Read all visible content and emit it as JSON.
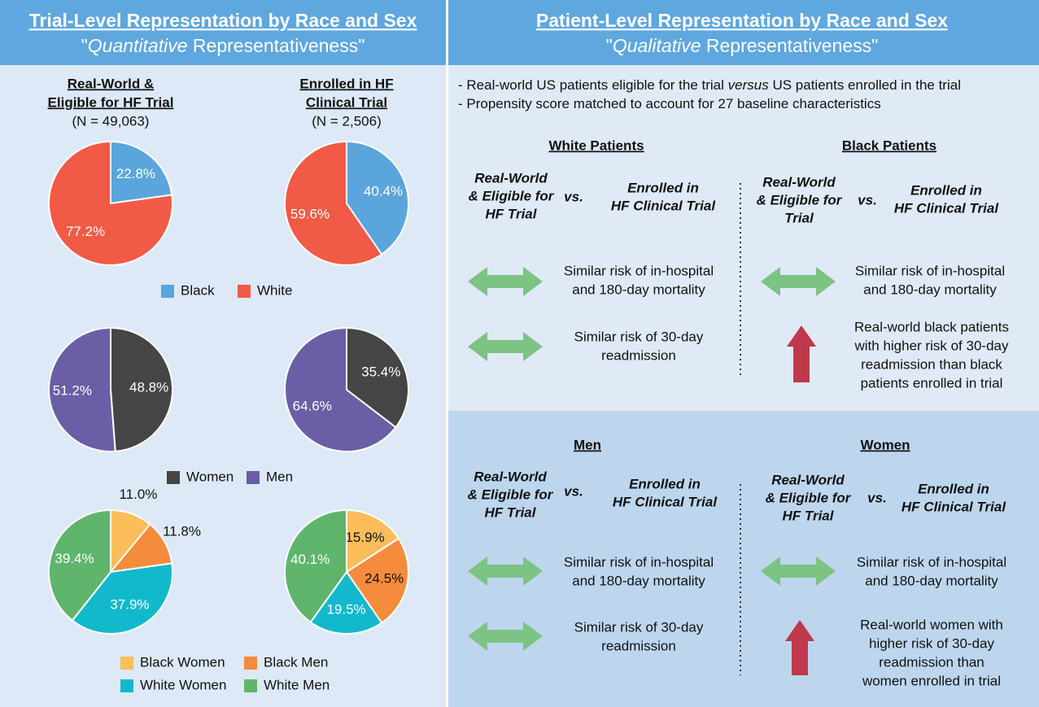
{
  "left_header": {
    "title": "Trial-Level Representation by Race and Sex",
    "subtitle": [
      "\"",
      "Quantitative",
      " Representativeness\""
    ]
  },
  "right_header": {
    "title": "Patient-Level Representation by Race and Sex",
    "subtitle": [
      "\"",
      "Qualitative",
      " Representativeness\""
    ]
  },
  "columns": [
    {
      "heading": [
        "Real-World &",
        "Eligible for HF Trial"
      ],
      "n": "(N = 49,063)"
    },
    {
      "heading": [
        "Enrolled in HF",
        "Clinical Trial"
      ],
      "n": "(N = 2,506)"
    }
  ],
  "chart_data": [
    {
      "type": "pie",
      "categories": [
        "Black",
        "White"
      ],
      "values": [
        22.8,
        77.2
      ],
      "value_labels": [
        "22.8%",
        "77.2%"
      ],
      "colors": [
        "#5aa5dc",
        "#f05a46"
      ]
    },
    {
      "type": "pie",
      "categories": [
        "Black",
        "White"
      ],
      "values": [
        40.4,
        59.6
      ],
      "value_labels": [
        "40.4%",
        "59.6%"
      ],
      "colors": [
        "#5aa5dc",
        "#f05a46"
      ]
    },
    {
      "type": "pie",
      "categories": [
        "Women",
        "Men"
      ],
      "values": [
        48.8,
        51.2
      ],
      "value_labels": [
        "48.8%",
        "51.2%"
      ],
      "colors": [
        "#454545",
        "#6a5ea6"
      ]
    },
    {
      "type": "pie",
      "categories": [
        "Women",
        "Men"
      ],
      "values": [
        35.4,
        64.6
      ],
      "value_labels": [
        "35.4%",
        "64.6%"
      ],
      "colors": [
        "#454545",
        "#6a5ea6"
      ]
    },
    {
      "type": "pie",
      "categories": [
        "Black Women",
        "Black Men",
        "White Women",
        "White Men"
      ],
      "values": [
        11,
        11.8,
        37.9,
        39.4
      ],
      "value_labels": [
        "11.0%",
        "11.8%",
        "37.9%",
        "39.4%"
      ],
      "colors": [
        "#fbbd5a",
        "#f58b3c",
        "#12b9cc",
        "#5fb56c"
      ]
    },
    {
      "type": "pie",
      "categories": [
        "Black Women",
        "Black Men",
        "White Women",
        "White Men"
      ],
      "values": [
        15.9,
        24.5,
        19.5,
        40.1
      ],
      "value_labels": [
        "15.9%",
        "24.5%",
        "19.5%",
        "40.1%"
      ],
      "colors": [
        "#fbbd5a",
        "#f58b3c",
        "#12b9cc",
        "#5fb56c"
      ]
    }
  ],
  "notes": [
    [
      "- Real-world US patients eligible for the trial ",
      "versus",
      " US patients enrolled in the trial"
    ],
    [
      "- Propensity score matched to account for 27 baseline characteristics"
    ]
  ],
  "groups": [
    {
      "heading": "White Patients",
      "left": [
        "Real-World",
        "& Eligible for",
        "HF Trial"
      ],
      "vs": "vs.",
      "right": [
        "Enrolled in",
        "HF Clinical Trial"
      ],
      "findings": [
        [
          "Similar risk of in-hospital",
          "and 180-day mortality"
        ],
        [
          "Similar risk of 30-day",
          "readmission"
        ]
      ]
    },
    {
      "heading": "Black Patients",
      "left": [
        "Real-World",
        "& Eligible for",
        "Trial"
      ],
      "vs": "vs.",
      "right": [
        "Enrolled in",
        "HF Clinical Trial"
      ],
      "findings": [
        [
          "Similar risk of in-hospital",
          "and 180-day mortality"
        ],
        [
          "Real-world black patients",
          "with higher risk of 30-day",
          "readmission than black",
          "patients enrolled in trial"
        ]
      ]
    },
    {
      "heading": "Men",
      "left": [
        "Real-World",
        "& Eligible for",
        "HF Trial"
      ],
      "vs": "vs.",
      "right": [
        "Enrolled in",
        "HF Clinical Trial"
      ],
      "findings": [
        [
          "Similar risk of in-hospital",
          "and 180-day mortality"
        ],
        [
          "Similar risk of 30-day",
          "readmission"
        ]
      ]
    },
    {
      "heading": "Women",
      "left": [
        "Real-World",
        "& Eligible for",
        "HF Trial"
      ],
      "vs": "vs.",
      "right": [
        "Enrolled in",
        "HF Clinical Trial"
      ],
      "findings": [
        [
          "Similar risk of in-hospital",
          "and 180-day mortality"
        ],
        [
          "Real-world women with",
          "higher risk of 30-day",
          "readmission than",
          "women enrolled in trial"
        ]
      ]
    }
  ]
}
